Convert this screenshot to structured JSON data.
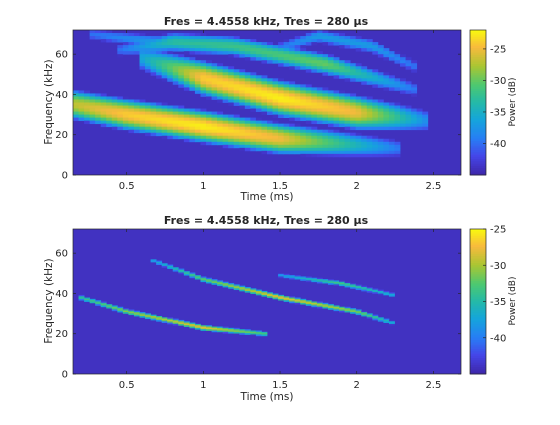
{
  "chart_data": [
    {
      "type": "heatmap",
      "title": "Fres = 4.4558 kHz, Tres = 280 µs",
      "xlabel": "Time (ms)",
      "ylabel": "Frequency (kHz)",
      "xlim": [
        0.15,
        2.68
      ],
      "ylim": [
        0,
        72
      ],
      "xticks": [
        "0.5",
        "1",
        "1.5",
        "2",
        "2.5"
      ],
      "xtick_values": [
        0.5,
        1,
        1.5,
        2,
        2.5
      ],
      "yticks": [
        "0",
        "20",
        "40",
        "60"
      ],
      "ytick_values": [
        0,
        20,
        40,
        60
      ],
      "colorbar": {
        "label": "Power (dB)",
        "range": [
          -45,
          -22
        ],
        "ticks": [
          "-25",
          "-30",
          "-35",
          "-40"
        ],
        "tick_values": [
          -25,
          -30,
          -35,
          -40
        ],
        "colormap": "parula"
      },
      "background_db": -44,
      "ridges": [
        {
          "t": [
            0.15,
            0.5,
            1.0,
            1.5,
            2.3
          ],
          "f": [
            35,
            30,
            24,
            18,
            13
          ],
          "peak_db": [
            -27,
            -24,
            -22.5,
            -25,
            -40
          ],
          "spread_khz": 4.5
        },
        {
          "t": [
            0.6,
            1.0,
            1.5,
            2.0,
            2.45
          ],
          "f": [
            58,
            48,
            38,
            31,
            27
          ],
          "peak_db": [
            -36,
            -24,
            -22.5,
            -25,
            -38
          ],
          "spread_khz": 5
        },
        {
          "t": [
            0.45,
            0.8,
            1.2,
            1.8,
            2.4
          ],
          "f": [
            62,
            66,
            64,
            55,
            42
          ],
          "peak_db": [
            -40,
            -33,
            -32,
            -30,
            -40
          ],
          "spread_khz": 3.5
        },
        {
          "t": [
            0.25,
            0.7,
            1.0
          ],
          "f": [
            70,
            66,
            62
          ],
          "peak_db": [
            -40,
            -37,
            -40
          ],
          "spread_khz": 3
        },
        {
          "t": [
            1.45,
            1.75,
            2.1,
            2.4
          ],
          "f": [
            62,
            69,
            64,
            53
          ],
          "peak_db": [
            -40,
            -37,
            -37,
            -40
          ],
          "spread_khz": 3
        }
      ]
    },
    {
      "type": "heatmap",
      "title": "Fres = 4.4558 kHz, Tres = 280 µs",
      "xlabel": "Time (ms)",
      "ylabel": "Frequency (kHz)",
      "xlim": [
        0.15,
        2.68
      ],
      "ylim": [
        0,
        72
      ],
      "xticks": [
        "0.5",
        "1",
        "1.5",
        "2",
        "2.5"
      ],
      "xtick_values": [
        0.5,
        1,
        1.5,
        2,
        2.5
      ],
      "yticks": [
        "0",
        "20",
        "40",
        "60"
      ],
      "ytick_values": [
        0,
        20,
        40,
        60
      ],
      "colorbar": {
        "label": "Power (dB)",
        "range": [
          -45,
          -25
        ],
        "ticks": [
          "-25",
          "-30",
          "-35",
          "-40"
        ],
        "tick_values": [
          -25,
          -30,
          -35,
          -40
        ],
        "colormap": "parula"
      },
      "background_db": -44,
      "ridges": [
        {
          "t": [
            0.2,
            0.5,
            1.0,
            1.4
          ],
          "f": [
            38,
            31,
            23,
            20
          ],
          "peak_db": [
            -34,
            -31,
            -28,
            -33
          ],
          "spread_khz": 0.9
        },
        {
          "t": [
            0.65,
            1.0,
            1.5,
            2.0,
            2.25
          ],
          "f": [
            57,
            47,
            38,
            31,
            25
          ],
          "peak_db": [
            -38,
            -32,
            -28,
            -31,
            -37
          ],
          "spread_khz": 0.9
        },
        {
          "t": [
            1.5,
            1.9,
            2.25
          ],
          "f": [
            49,
            45,
            39
          ],
          "peak_db": [
            -38,
            -33,
            -37
          ],
          "spread_khz": 0.9
        }
      ]
    }
  ]
}
